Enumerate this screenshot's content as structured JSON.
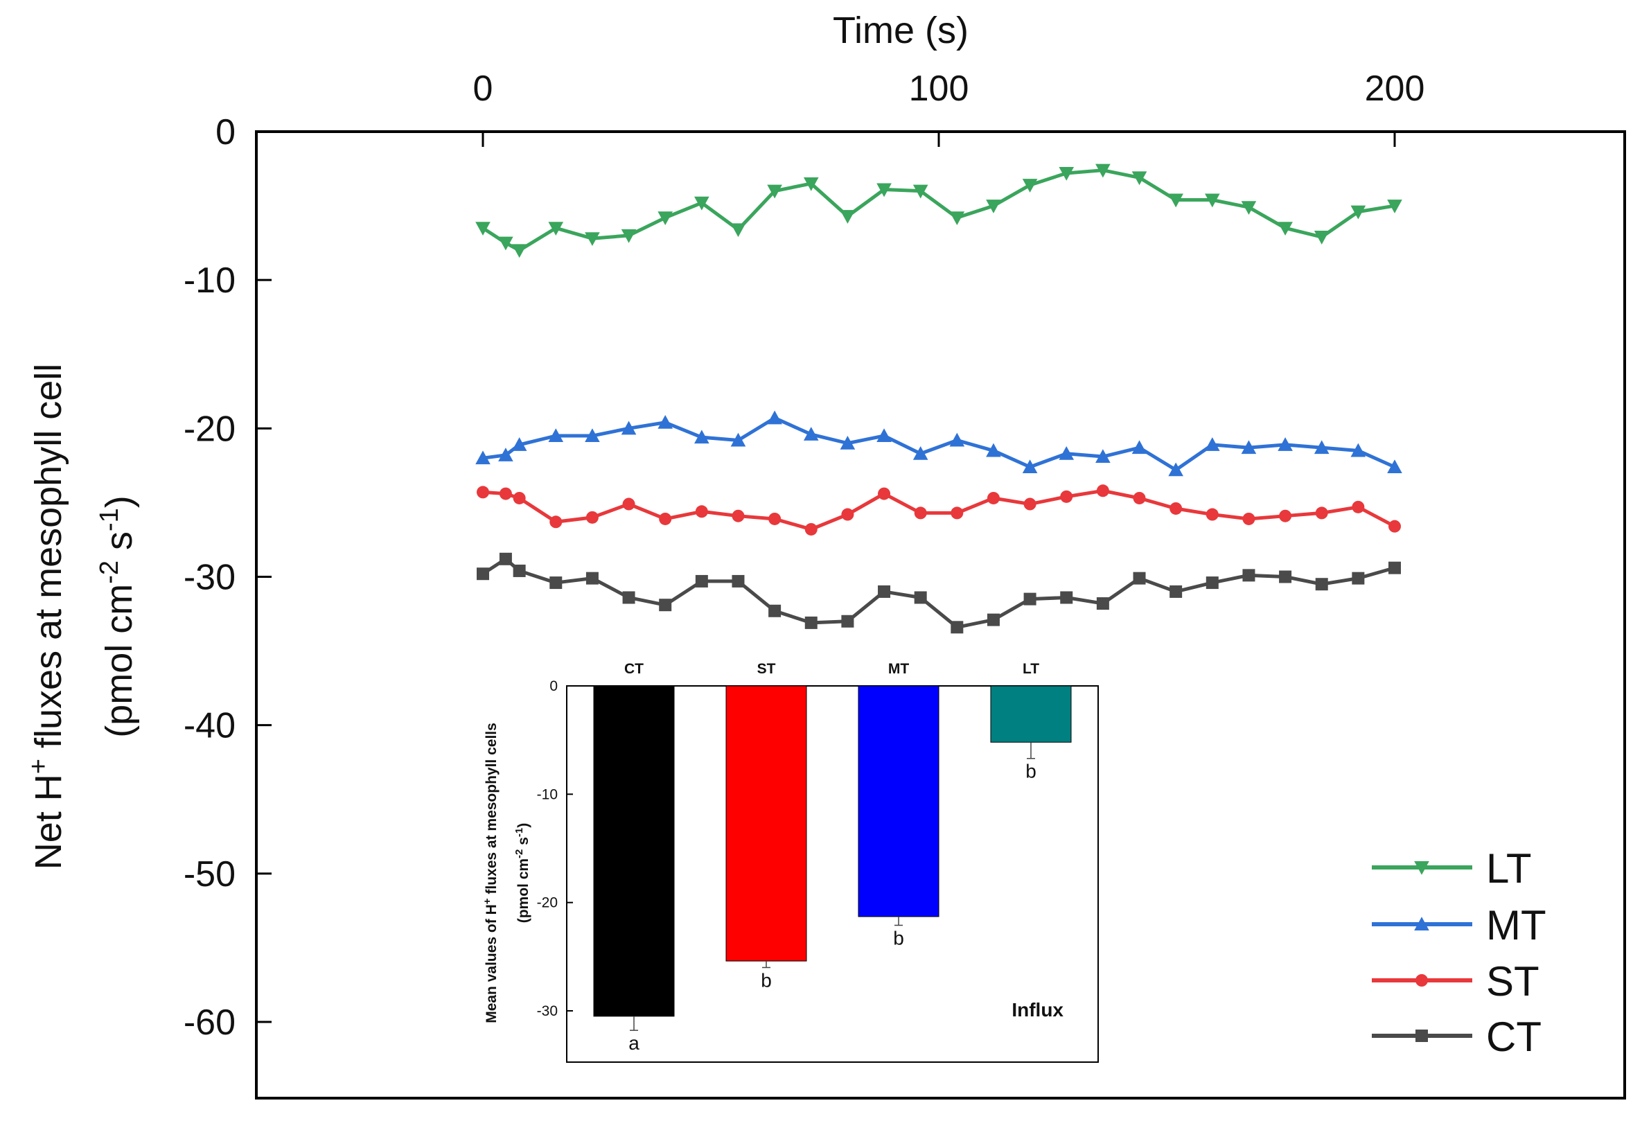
{
  "chart_data": [
    {
      "type": "line",
      "title": "",
      "xlabel": "Time (s)",
      "ylabel_line1_prefix": "Net H",
      "ylabel_line1_sup": "+",
      "ylabel_line1_suffix": " fluxes at mesophyll cell",
      "ylabel_line2": {
        "open": "(pmol cm",
        "sup1": "-2",
        "mid": " s",
        "sup2": "-1",
        "close": ")"
      },
      "xlim": [
        -50,
        250
      ],
      "ylim": [
        -65,
        0
      ],
      "xticks": [
        0,
        100,
        200
      ],
      "xtick_labels": [
        "0",
        "100",
        "200"
      ],
      "yticks": [
        0,
        -10,
        -20,
        -30,
        -40,
        -50,
        -60
      ],
      "ytick_labels": [
        "0",
        "-10",
        "-20",
        "-30",
        "-40",
        "-50",
        "-60"
      ],
      "legend_position": "bottom-right",
      "series": [
        {
          "name": "LT",
          "color": "#3aa55c",
          "marker": "triangle-down",
          "x": [
            0,
            5,
            8,
            16,
            24,
            32,
            40,
            48,
            56,
            64,
            72,
            80,
            88,
            96,
            104,
            112,
            120,
            128,
            136,
            144,
            152,
            160,
            168,
            176,
            184,
            192,
            200
          ],
          "y": [
            -6.5,
            -7.5,
            -8,
            -6.5,
            -7.2,
            -7,
            -5.8,
            -4.8,
            -6.6,
            -4,
            -3.5,
            -5.7,
            -3.9,
            -4,
            -5.8,
            -5,
            -3.6,
            -2.8,
            -2.6,
            -3.1,
            -4.6,
            -4.6,
            -5.1,
            -6.5,
            -7.1,
            -5.4,
            -5
          ]
        },
        {
          "name": "MT",
          "color": "#2f72d6",
          "marker": "triangle-up",
          "x": [
            0,
            5,
            8,
            16,
            24,
            32,
            40,
            48,
            56,
            64,
            72,
            80,
            88,
            96,
            104,
            112,
            120,
            128,
            136,
            144,
            152,
            160,
            168,
            176,
            184,
            192,
            200
          ],
          "y": [
            -22,
            -21.8,
            -21.1,
            -20.5,
            -20.5,
            -20,
            -19.6,
            -20.6,
            -20.8,
            -19.3,
            -20.4,
            -21,
            -20.5,
            -21.7,
            -20.8,
            -21.5,
            -22.6,
            -21.7,
            -21.9,
            -21.3,
            -22.8,
            -21.1,
            -21.3,
            -21.1,
            -21.3,
            -21.5,
            -22.6
          ]
        },
        {
          "name": "ST",
          "color": "#e8383b",
          "marker": "circle",
          "x": [
            0,
            5,
            8,
            16,
            24,
            32,
            40,
            48,
            56,
            64,
            72,
            80,
            88,
            96,
            104,
            112,
            120,
            128,
            136,
            144,
            152,
            160,
            168,
            176,
            184,
            192,
            200
          ],
          "y": [
            -24.3,
            -24.4,
            -24.7,
            -26.3,
            -26,
            -25.1,
            -26.1,
            -25.6,
            -25.9,
            -26.1,
            -26.8,
            -25.8,
            -24.4,
            -25.7,
            -25.7,
            -24.7,
            -25.1,
            -24.6,
            -24.2,
            -24.7,
            -25.4,
            -25.8,
            -26.1,
            -25.9,
            -25.7,
            -25.3,
            -26.6
          ]
        },
        {
          "name": "CT",
          "color": "#4a4a4a",
          "marker": "square",
          "x": [
            0,
            5,
            8,
            16,
            24,
            32,
            40,
            48,
            56,
            64,
            72,
            80,
            88,
            96,
            104,
            112,
            120,
            128,
            136,
            144,
            152,
            160,
            168,
            176,
            184,
            192,
            200
          ],
          "y": [
            -29.8,
            -28.8,
            -29.6,
            -30.4,
            -30.1,
            -31.4,
            -31.9,
            -30.3,
            -30.3,
            -32.3,
            -33.1,
            -33,
            -31,
            -31.4,
            -33.4,
            -32.9,
            -31.5,
            -31.4,
            -31.8,
            -30.1,
            -31,
            -30.4,
            -29.9,
            -30,
            -30.5,
            -30.1,
            -29.4
          ]
        }
      ]
    },
    {
      "type": "bar",
      "role": "inset",
      "categories": [
        "CT",
        "ST",
        "MT",
        "LT"
      ],
      "values": [
        -30.5,
        -25.4,
        -21.3,
        -5.2
      ],
      "errors": [
        1.3,
        0.6,
        0.8,
        1.5
      ],
      "significance": [
        "a",
        "b",
        "b",
        "b"
      ],
      "colors": [
        "#000000",
        "#ff0000",
        "#0000ff",
        "#008080"
      ],
      "ylim": [
        -35,
        0
      ],
      "yticks": [
        0,
        -10,
        -20,
        -30
      ],
      "ytick_labels": [
        "0",
        "-10",
        "-20",
        "-30"
      ],
      "ylabel_line1_prefix": "Mean values of H",
      "ylabel_line1_sup": "+",
      "ylabel_line1_suffix": " fluxes at mesophyll cells",
      "ylabel_line2": {
        "open": "(pmol cm",
        "sup1": "-2",
        "mid": " s",
        "sup2": "-1",
        "close": ")"
      },
      "annotation": "Influx"
    }
  ]
}
